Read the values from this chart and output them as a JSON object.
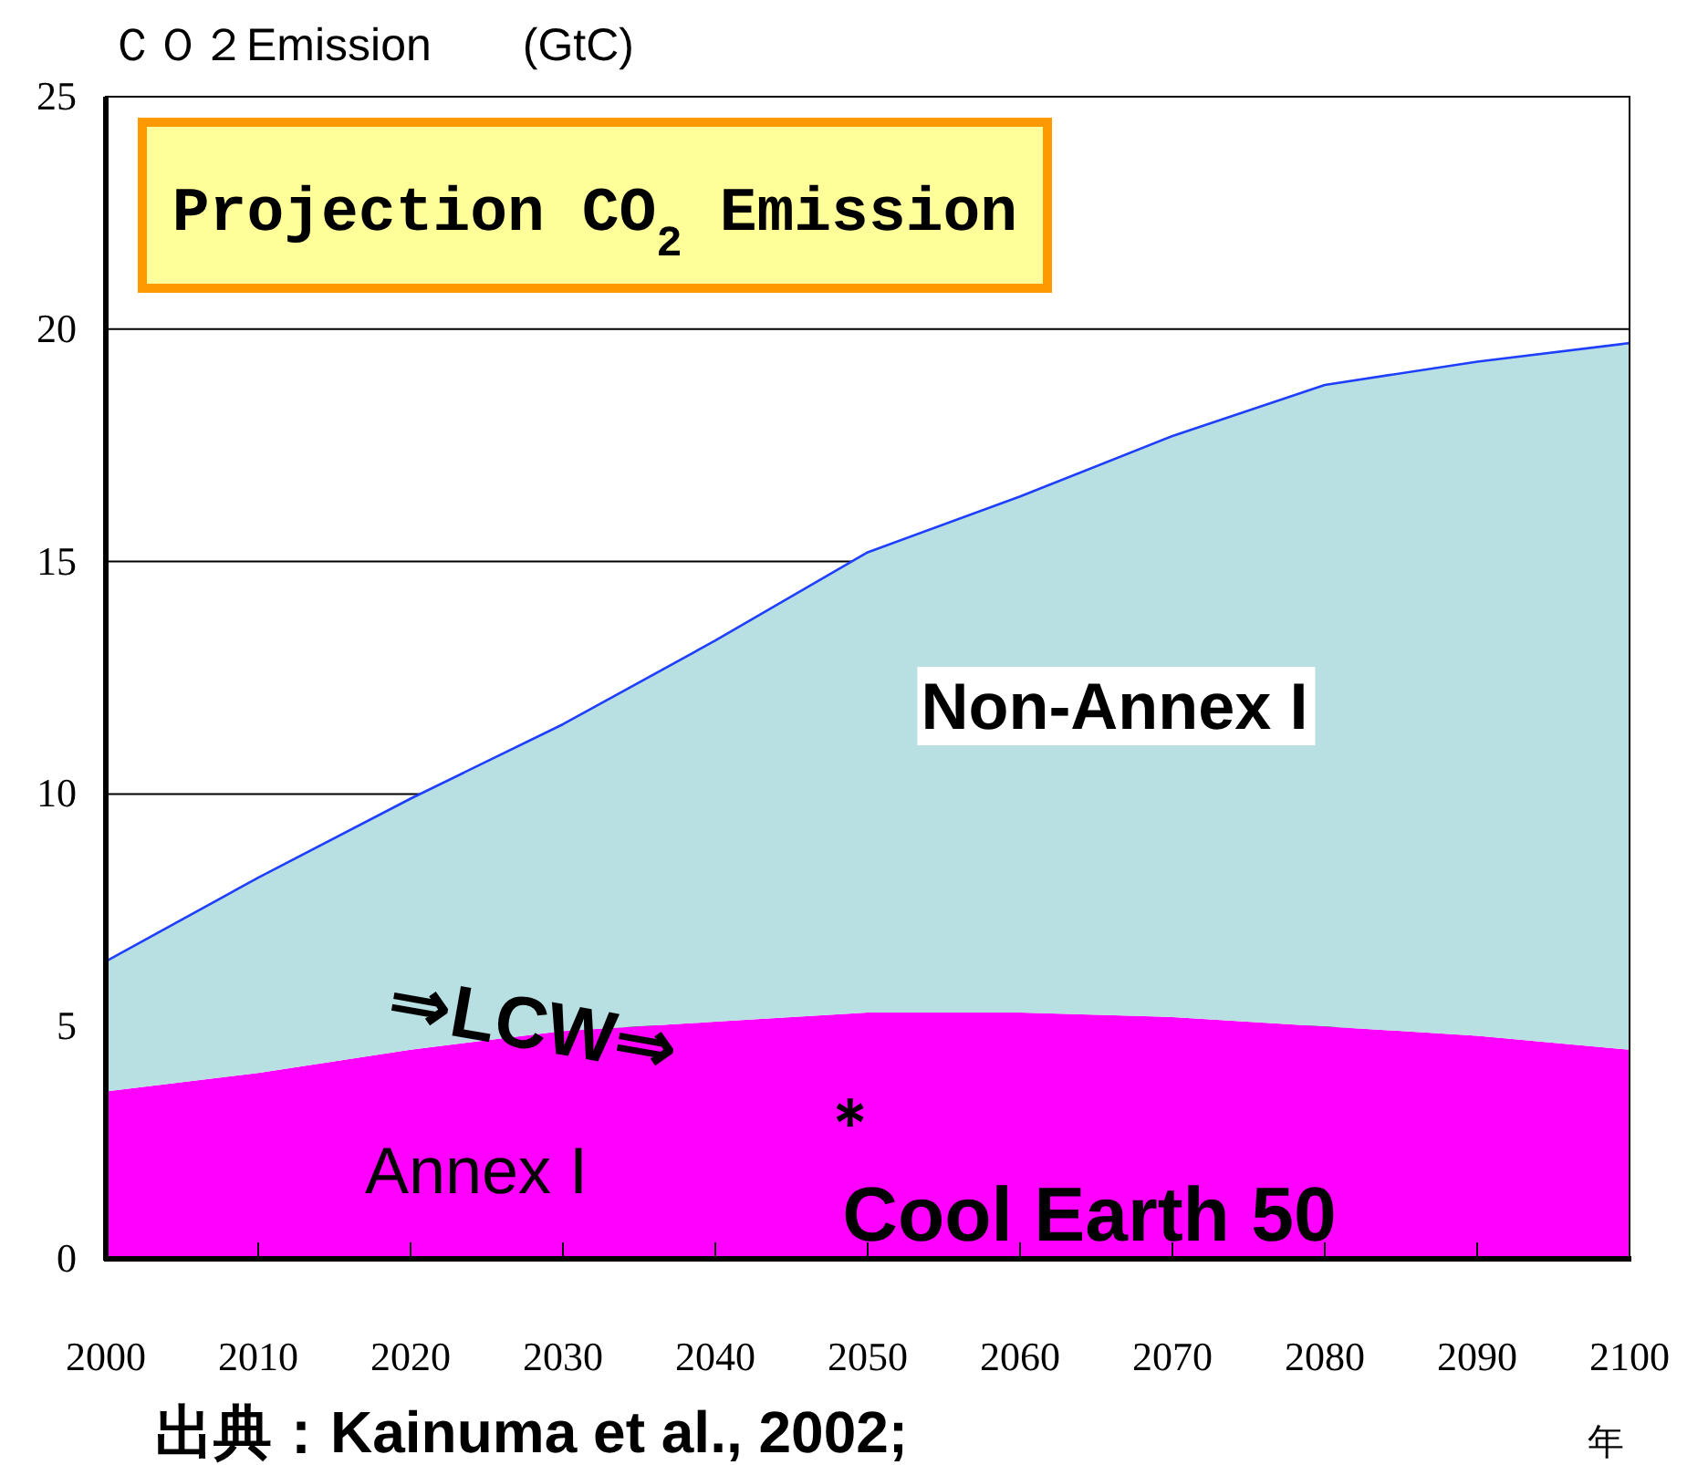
{
  "chart_data": {
    "type": "area",
    "stacked": true,
    "ylabel": "ＣＯ２Emission　　(GtC)",
    "xlabel": "年",
    "x": [
      2000,
      2010,
      2020,
      2030,
      2040,
      2050,
      2060,
      2070,
      2080,
      2090,
      2100
    ],
    "series": [
      {
        "name": "Annex I",
        "color": "#ff00ff",
        "values": [
          3.6,
          4.0,
          4.5,
          4.9,
          5.1,
          5.3,
          5.3,
          5.2,
          5.0,
          4.8,
          4.5
        ]
      },
      {
        "name": "Non-Annex I",
        "color": "#b8dfe1",
        "values": [
          2.8,
          4.2,
          5.4,
          6.6,
          8.2,
          9.9,
          11.1,
          12.5,
          13.8,
          14.5,
          15.2
        ]
      }
    ],
    "xlim": [
      2000,
      2100
    ],
    "xticks": [
      2000,
      2010,
      2020,
      2030,
      2040,
      2050,
      2060,
      2070,
      2080,
      2090,
      2100
    ],
    "ylim": [
      0,
      25
    ],
    "yticks": [
      0,
      5,
      10,
      15,
      20,
      25
    ],
    "grid": "y",
    "annotations": [
      "Projection CO$_{2}$ Emission",
      "⇒LCW⇒",
      "＊",
      "Cool Earth 50",
      "出典：Kainuma et al., 2002;"
    ]
  }
}
